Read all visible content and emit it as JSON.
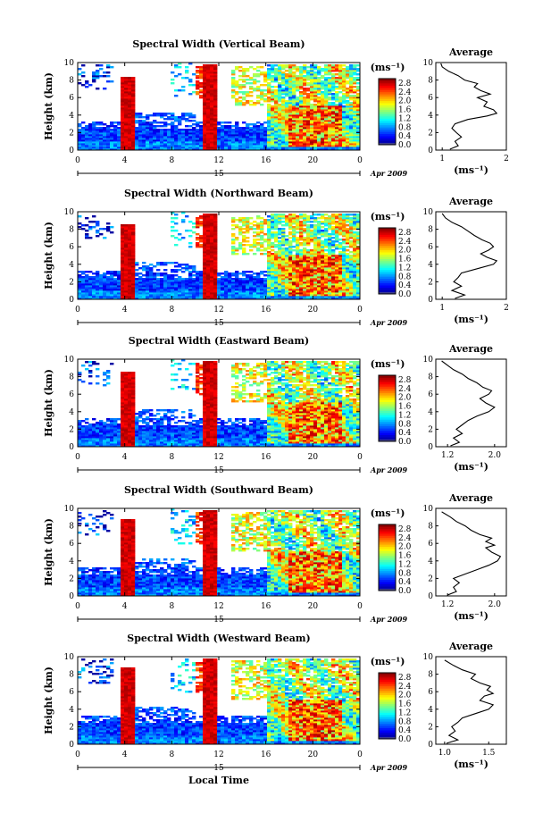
{
  "chart_data": [
    {
      "type": "heatmap",
      "title": "Spectral Width (Vertical Beam)",
      "ylabel": "Height (km)",
      "ylim": [
        0,
        10
      ],
      "yticks": [
        "0",
        "2",
        "4",
        "6",
        "8",
        "10"
      ],
      "xlim": [
        0,
        24
      ],
      "xticks": [
        "0",
        "4",
        "8",
        "12",
        "16",
        "20",
        "0"
      ],
      "date_day": "15",
      "date_label": "Apr 2009",
      "colorbar": {
        "unit": "(ms⁻¹)",
        "ticks": [
          "0.0",
          "0.4",
          "0.8",
          "1.2",
          "1.6",
          "2.0",
          "2.4",
          "2.8"
        ],
        "range": [
          0,
          3.0
        ]
      },
      "average": {
        "title": "Average",
        "xlabel": "(ms⁻¹)",
        "xticks": [
          "1",
          "2"
        ],
        "xlim": [
          0.9,
          2.0
        ],
        "profile": [
          [
            1.12,
            0.1
          ],
          [
            1.25,
            0.5
          ],
          [
            1.2,
            1.0
          ],
          [
            1.3,
            1.5
          ],
          [
            1.22,
            2.0
          ],
          [
            1.15,
            2.5
          ],
          [
            1.2,
            3.0
          ],
          [
            1.4,
            3.5
          ],
          [
            1.7,
            3.9
          ],
          [
            1.85,
            4.2
          ],
          [
            1.8,
            4.6
          ],
          [
            1.65,
            5.0
          ],
          [
            1.7,
            5.5
          ],
          [
            1.55,
            6.0
          ],
          [
            1.75,
            6.4
          ],
          [
            1.6,
            6.8
          ],
          [
            1.5,
            7.2
          ],
          [
            1.55,
            7.6
          ],
          [
            1.35,
            8.0
          ],
          [
            1.25,
            8.5
          ],
          [
            1.1,
            9.0
          ],
          [
            1.0,
            9.5
          ],
          [
            0.98,
            9.9
          ]
        ]
      }
    },
    {
      "type": "heatmap",
      "title": "Spectral Width (Northward Beam)",
      "ylabel": "Height (km)",
      "ylim": [
        0,
        10
      ],
      "yticks": [
        "0",
        "2",
        "4",
        "6",
        "8",
        "10"
      ],
      "xlim": [
        0,
        24
      ],
      "xticks": [
        "0",
        "4",
        "8",
        "12",
        "16",
        "20",
        "0"
      ],
      "date_day": "15",
      "date_label": "Apr 2009",
      "colorbar": {
        "unit": "(ms⁻¹)",
        "ticks": [
          "0.0",
          "0.4",
          "0.8",
          "1.2",
          "1.6",
          "2.0",
          "2.4",
          "2.8"
        ],
        "range": [
          0,
          3.0
        ]
      },
      "average": {
        "title": "Average",
        "xlabel": "(ms⁻¹)",
        "xticks": [
          "1",
          "2"
        ],
        "xlim": [
          0.9,
          2.0
        ],
        "profile": [
          [
            1.2,
            0.1
          ],
          [
            1.35,
            0.5
          ],
          [
            1.15,
            1.0
          ],
          [
            1.3,
            1.5
          ],
          [
            1.18,
            2.0
          ],
          [
            1.25,
            2.5
          ],
          [
            1.3,
            3.0
          ],
          [
            1.55,
            3.5
          ],
          [
            1.8,
            4.0
          ],
          [
            1.85,
            4.4
          ],
          [
            1.7,
            4.8
          ],
          [
            1.6,
            5.2
          ],
          [
            1.72,
            5.6
          ],
          [
            1.8,
            6.0
          ],
          [
            1.75,
            6.4
          ],
          [
            1.62,
            6.8
          ],
          [
            1.5,
            7.3
          ],
          [
            1.4,
            7.8
          ],
          [
            1.3,
            8.3
          ],
          [
            1.15,
            8.8
          ],
          [
            1.05,
            9.3
          ],
          [
            1.0,
            9.8
          ]
        ]
      }
    },
    {
      "type": "heatmap",
      "title": "Spectral Width (Eastward Beam)",
      "ylabel": "Height (km)",
      "ylim": [
        0,
        10
      ],
      "yticks": [
        "0",
        "2",
        "4",
        "6",
        "8",
        "10"
      ],
      "xlim": [
        0,
        24
      ],
      "xticks": [
        "0",
        "4",
        "8",
        "12",
        "16",
        "20",
        "0"
      ],
      "date_day": "15",
      "date_label": "Apr 2009",
      "colorbar": {
        "unit": "(ms⁻¹)",
        "ticks": [
          "0.0",
          "0.4",
          "0.8",
          "1.2",
          "1.6",
          "2.0",
          "2.4",
          "2.8"
        ],
        "range": [
          0,
          3.0
        ]
      },
      "average": {
        "title": "Average",
        "xlabel": "(ms⁻¹)",
        "xticks": [
          "1.2",
          "2.0"
        ],
        "xlim": [
          1.0,
          2.2
        ],
        "profile": [
          [
            1.25,
            0.1
          ],
          [
            1.4,
            0.5
          ],
          [
            1.3,
            1.0
          ],
          [
            1.45,
            1.5
          ],
          [
            1.35,
            2.0
          ],
          [
            1.45,
            2.5
          ],
          [
            1.55,
            3.0
          ],
          [
            1.7,
            3.5
          ],
          [
            1.9,
            4.0
          ],
          [
            2.0,
            4.5
          ],
          [
            1.85,
            5.0
          ],
          [
            1.75,
            5.5
          ],
          [
            1.9,
            6.0
          ],
          [
            1.95,
            6.4
          ],
          [
            1.8,
            6.8
          ],
          [
            1.7,
            7.3
          ],
          [
            1.55,
            7.8
          ],
          [
            1.45,
            8.3
          ],
          [
            1.3,
            8.8
          ],
          [
            1.2,
            9.3
          ],
          [
            1.1,
            9.8
          ]
        ]
      }
    },
    {
      "type": "heatmap",
      "title": "Spectral Width (Southward Beam)",
      "ylabel": "Height (km)",
      "ylim": [
        0,
        10
      ],
      "yticks": [
        "0",
        "2",
        "4",
        "6",
        "8",
        "10"
      ],
      "xlim": [
        0,
        24
      ],
      "xticks": [
        "0",
        "4",
        "8",
        "12",
        "16",
        "20",
        "0"
      ],
      "date_day": "15",
      "date_label": "Apr 2009",
      "colorbar": {
        "unit": "(ms⁻¹)",
        "ticks": [
          "0.0",
          "0.4",
          "0.8",
          "1.2",
          "1.6",
          "2.0",
          "2.4",
          "2.8"
        ],
        "range": [
          0,
          3.0
        ]
      },
      "average": {
        "title": "Average",
        "xlabel": "(ms⁻¹)",
        "xticks": [
          "1.2",
          "2.0"
        ],
        "xlim": [
          1.0,
          2.2
        ],
        "profile": [
          [
            1.2,
            0.1
          ],
          [
            1.35,
            0.5
          ],
          [
            1.3,
            1.0
          ],
          [
            1.4,
            1.5
          ],
          [
            1.3,
            2.0
          ],
          [
            1.5,
            2.5
          ],
          [
            1.7,
            3.0
          ],
          [
            1.9,
            3.5
          ],
          [
            2.05,
            4.0
          ],
          [
            2.1,
            4.5
          ],
          [
            1.95,
            5.0
          ],
          [
            1.85,
            5.5
          ],
          [
            2.0,
            5.8
          ],
          [
            1.85,
            6.2
          ],
          [
            1.95,
            6.6
          ],
          [
            1.75,
            7.0
          ],
          [
            1.6,
            7.5
          ],
          [
            1.5,
            8.0
          ],
          [
            1.35,
            8.5
          ],
          [
            1.25,
            9.0
          ],
          [
            1.1,
            9.6
          ]
        ]
      }
    },
    {
      "type": "heatmap",
      "title": "Spectral Width (Westward Beam)",
      "ylabel": "Height (km)",
      "ylim": [
        0,
        10
      ],
      "yticks": [
        "0",
        "2",
        "4",
        "6",
        "8",
        "10"
      ],
      "xlim": [
        0,
        24
      ],
      "xticks": [
        "0",
        "4",
        "8",
        "12",
        "16",
        "20",
        "0"
      ],
      "date_day": "15",
      "date_label": "Apr 2009",
      "xlabel": "Local Time",
      "colorbar": {
        "unit": "(ms⁻¹)",
        "ticks": [
          "0.0",
          "0.4",
          "0.8",
          "1.2",
          "1.6",
          "2.0",
          "2.4",
          "2.8"
        ],
        "range": [
          0,
          3.0
        ]
      },
      "average": {
        "title": "Average",
        "xlabel": "(ms⁻¹)",
        "xticks": [
          "1.0",
          "1.5"
        ],
        "xlim": [
          0.9,
          1.7
        ],
        "profile": [
          [
            1.02,
            0.1
          ],
          [
            1.15,
            0.5
          ],
          [
            1.05,
            1.0
          ],
          [
            1.12,
            1.5
          ],
          [
            1.08,
            2.0
          ],
          [
            1.15,
            2.5
          ],
          [
            1.2,
            3.0
          ],
          [
            1.35,
            3.5
          ],
          [
            1.5,
            4.0
          ],
          [
            1.55,
            4.5
          ],
          [
            1.4,
            5.0
          ],
          [
            1.45,
            5.5
          ],
          [
            1.55,
            5.8
          ],
          [
            1.48,
            6.2
          ],
          [
            1.52,
            6.6
          ],
          [
            1.4,
            7.0
          ],
          [
            1.3,
            7.5
          ],
          [
            1.35,
            8.0
          ],
          [
            1.2,
            8.5
          ],
          [
            1.1,
            9.0
          ],
          [
            1.0,
            9.6
          ]
        ]
      }
    }
  ]
}
